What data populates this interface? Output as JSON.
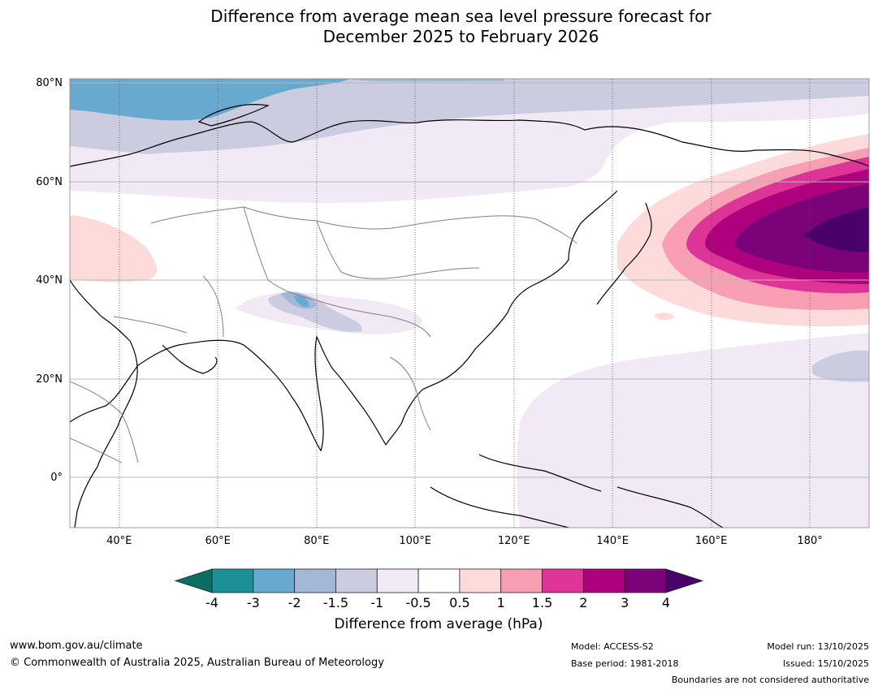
{
  "title": {
    "line1": "Difference from average mean sea level pressure forecast for",
    "line2": "December 2025 to February 2026"
  },
  "map": {
    "extent": {
      "lon_min": 30,
      "lon_max": 192,
      "lat_min": -10,
      "lat_max": 81
    },
    "lat_labels": [
      {
        "text": "80°N",
        "lat": 80
      },
      {
        "text": "60°N",
        "lat": 60
      },
      {
        "text": "40°N",
        "lat": 40
      },
      {
        "text": "20°N",
        "lat": 20
      },
      {
        "text": "0°",
        "lat": 0
      }
    ],
    "lon_labels": [
      {
        "text": "40°E",
        "lon": 40
      },
      {
        "text": "60°E",
        "lon": 60
      },
      {
        "text": "80°E",
        "lon": 80
      },
      {
        "text": "100°E",
        "lon": 100
      },
      {
        "text": "120°E",
        "lon": 120
      },
      {
        "text": "140°E",
        "lon": 140
      },
      {
        "text": "160°E",
        "lon": 160
      },
      {
        "text": "180°",
        "lon": 180
      }
    ]
  },
  "colorbar": {
    "label": "Difference from average (hPa)",
    "ticks": [
      "-4",
      "-3",
      "-2",
      "-1.5",
      "-1",
      "-0.5",
      "0.5",
      "1",
      "1.5",
      "2",
      "3",
      "4"
    ],
    "colors": [
      "#0b6e63",
      "#1b9099",
      "#67a9cf",
      "#a3b8d6",
      "#cccce0",
      "#f1eaf4",
      "#ffffff",
      "#fddbda",
      "#f99fb4",
      "#dc3497",
      "#ae017e",
      "#7a0177",
      "#49006a"
    ]
  },
  "footer": {
    "website": "www.bom.gov.au/climate",
    "copyright": "© Commonwealth of Australia 2025, Australian Bureau of Meteorology",
    "model": "Model: ACCESS-S2",
    "base_period": "Base period: 1981-2018",
    "model_run": "Model run: 13/10/2025",
    "issued": "Issued: 15/10/2025",
    "disclaimer": "Boundaries are not considered authoritative"
  }
}
